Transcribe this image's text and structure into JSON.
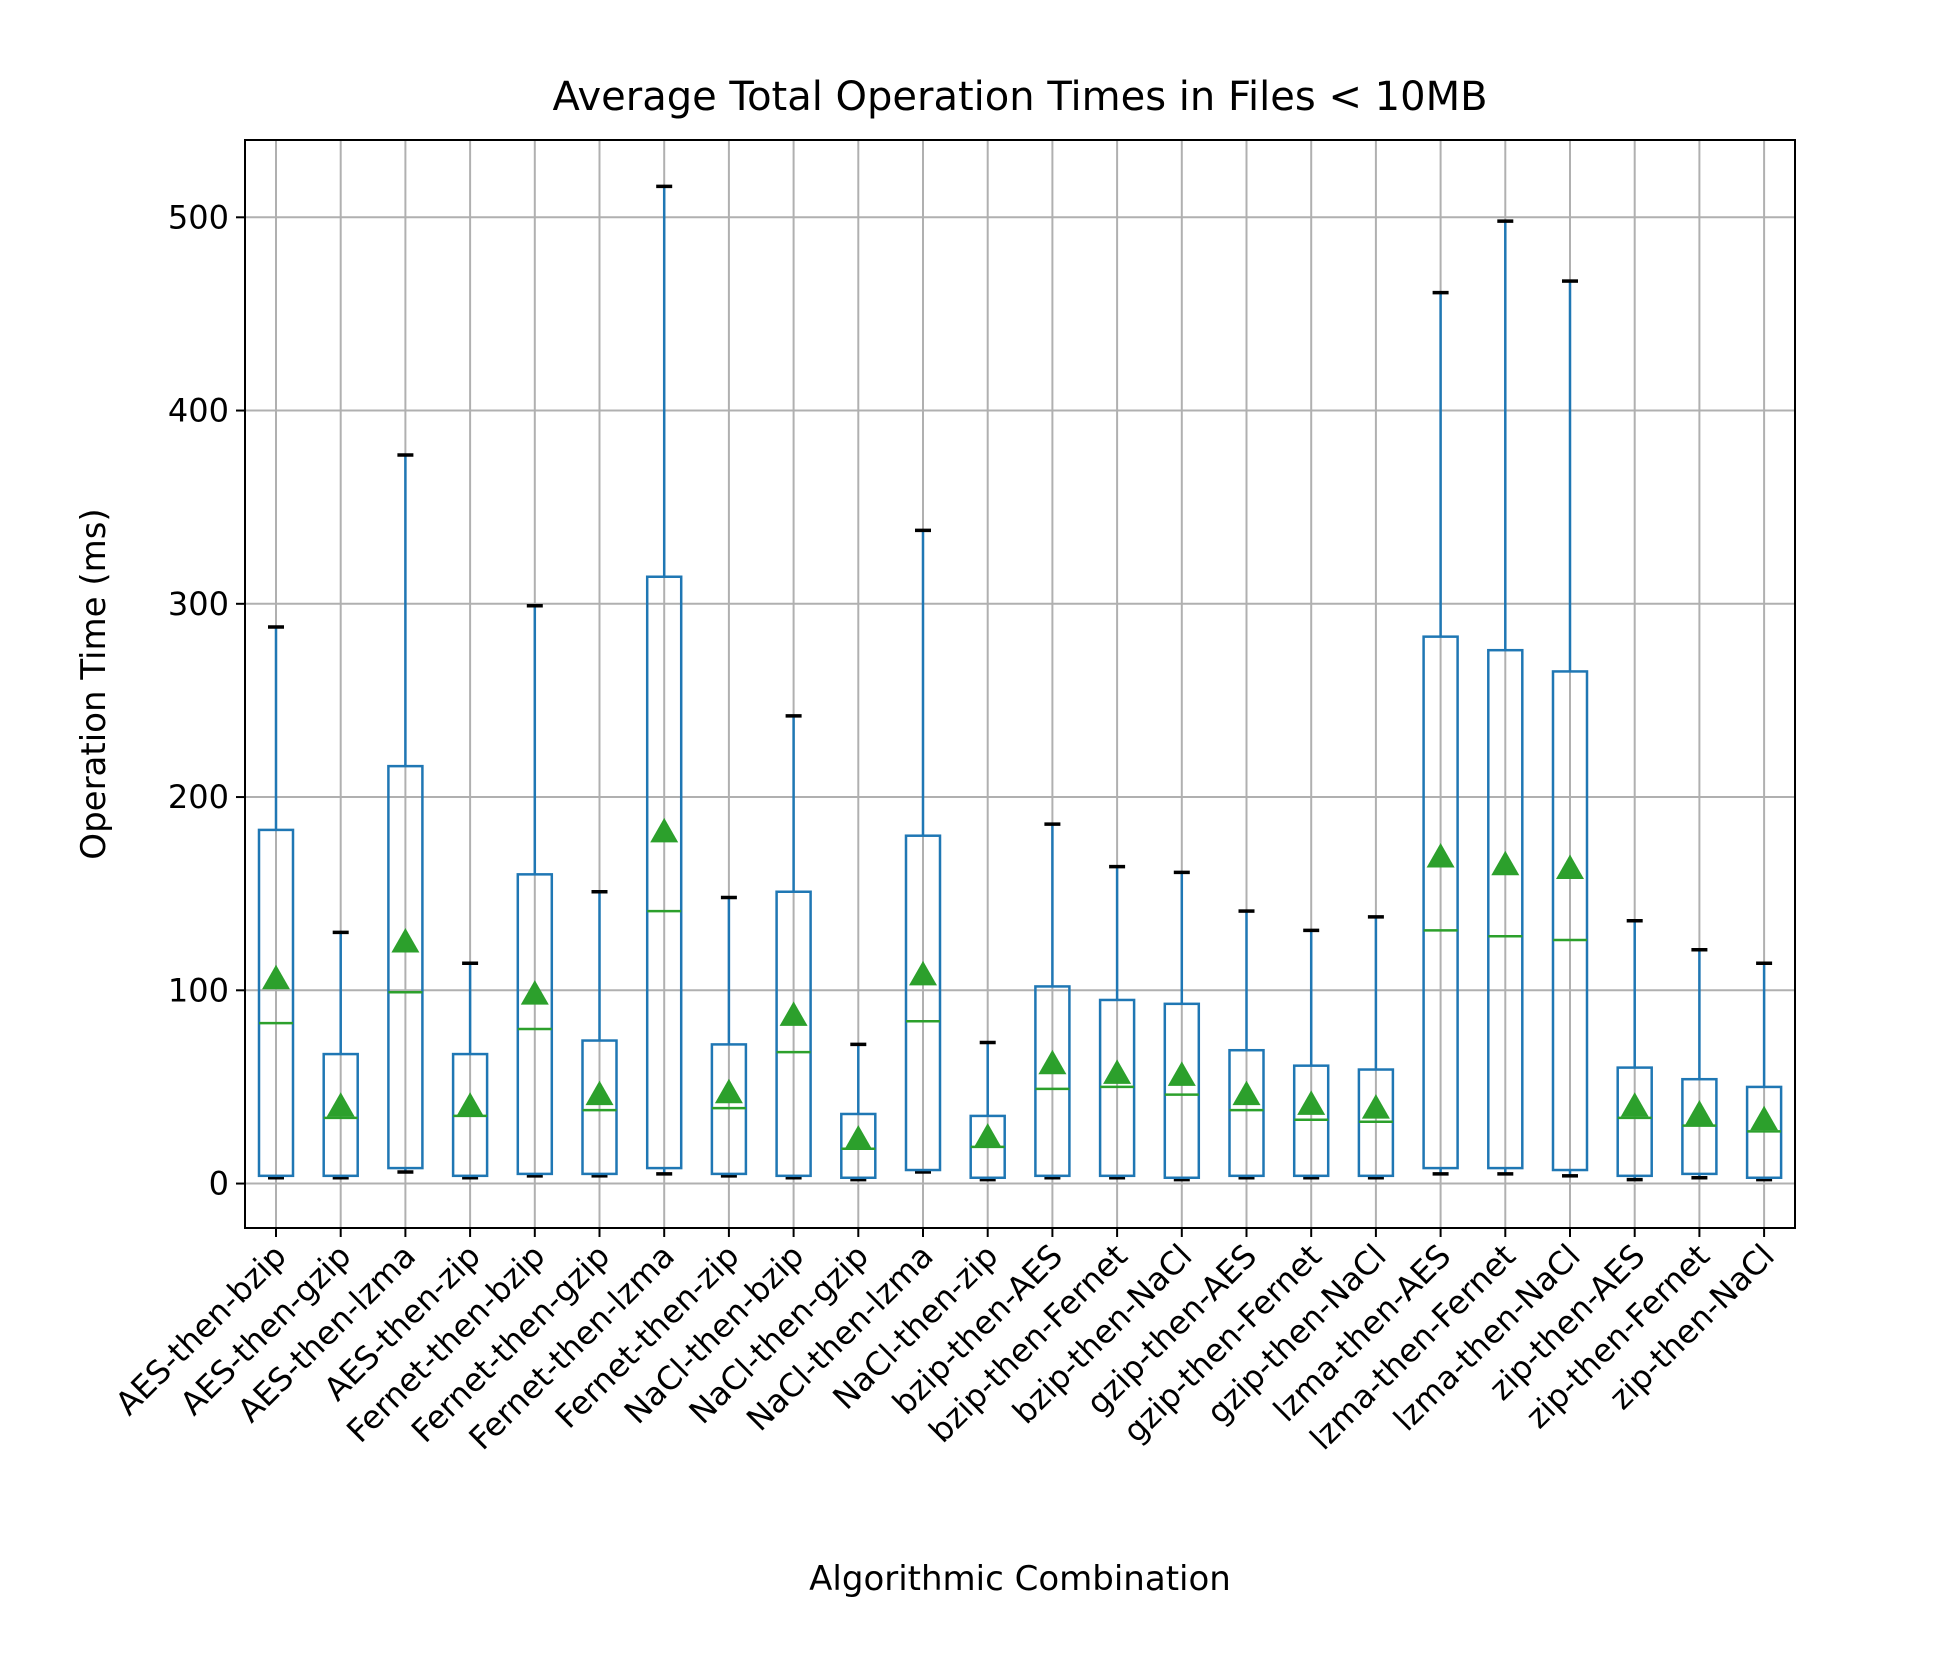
{
  "chart_data": {
    "type": "box",
    "title": "Average Total Operation Times in Files < 10MB",
    "xlabel": "Algorithmic Combination",
    "ylabel": "Operation Time (ms)",
    "ylim": [
      -23,
      540
    ],
    "yticks": [
      0,
      100,
      200,
      300,
      400,
      500
    ],
    "grid": true,
    "colors": {
      "box": "#1f77b4",
      "median": "#2ca02c",
      "mean": "#2ca02c",
      "whisker_cap": "#000000",
      "grid": "#b0b0b0"
    },
    "categories": [
      "AES-then-bzip",
      "AES-then-gzip",
      "AES-then-lzma",
      "AES-then-zip",
      "Fernet-then-bzip",
      "Fernet-then-gzip",
      "Fernet-then-lzma",
      "Fernet-then-zip",
      "NaCl-then-bzip",
      "NaCl-then-gzip",
      "NaCl-then-lzma",
      "NaCl-then-zip",
      "bzip-then-AES",
      "bzip-then-Fernet",
      "bzip-then-NaCl",
      "gzip-then-AES",
      "gzip-then-Fernet",
      "gzip-then-NaCl",
      "lzma-then-AES",
      "lzma-then-Fernet",
      "lzma-then-NaCl",
      "zip-then-AES",
      "zip-then-Fernet",
      "zip-then-NaCl"
    ],
    "boxes": [
      {
        "whisker_low": 3,
        "q1": 4,
        "median": 83,
        "q3": 183,
        "whisker_high": 288,
        "mean": 106
      },
      {
        "whisker_low": 3,
        "q1": 4,
        "median": 34,
        "q3": 67,
        "whisker_high": 130,
        "mean": 40
      },
      {
        "whisker_low": 6,
        "q1": 8,
        "median": 99,
        "q3": 216,
        "whisker_high": 377,
        "mean": 125
      },
      {
        "whisker_low": 3,
        "q1": 4,
        "median": 35,
        "q3": 67,
        "whisker_high": 114,
        "mean": 40
      },
      {
        "whisker_low": 4,
        "q1": 5,
        "median": 80,
        "q3": 160,
        "whisker_high": 299,
        "mean": 98
      },
      {
        "whisker_low": 4,
        "q1": 5,
        "median": 38,
        "q3": 74,
        "whisker_high": 151,
        "mean": 46
      },
      {
        "whisker_low": 5,
        "q1": 8,
        "median": 141,
        "q3": 314,
        "whisker_high": 516,
        "mean": 182
      },
      {
        "whisker_low": 4,
        "q1": 5,
        "median": 39,
        "q3": 72,
        "whisker_high": 148,
        "mean": 47
      },
      {
        "whisker_low": 3,
        "q1": 4,
        "median": 68,
        "q3": 151,
        "whisker_high": 242,
        "mean": 87
      },
      {
        "whisker_low": 2,
        "q1": 3,
        "median": 18,
        "q3": 36,
        "whisker_high": 72,
        "mean": 23
      },
      {
        "whisker_low": 6,
        "q1": 7,
        "median": 84,
        "q3": 180,
        "whisker_high": 338,
        "mean": 108
      },
      {
        "whisker_low": 2,
        "q1": 3,
        "median": 19,
        "q3": 35,
        "whisker_high": 73,
        "mean": 24
      },
      {
        "whisker_low": 3,
        "q1": 4,
        "median": 49,
        "q3": 102,
        "whisker_high": 186,
        "mean": 62
      },
      {
        "whisker_low": 3,
        "q1": 4,
        "median": 50,
        "q3": 95,
        "whisker_high": 164,
        "mean": 57
      },
      {
        "whisker_low": 2,
        "q1": 3,
        "median": 46,
        "q3": 93,
        "whisker_high": 161,
        "mean": 56
      },
      {
        "whisker_low": 3,
        "q1": 4,
        "median": 38,
        "q3": 69,
        "whisker_high": 141,
        "mean": 46
      },
      {
        "whisker_low": 3,
        "q1": 4,
        "median": 33,
        "q3": 61,
        "whisker_high": 131,
        "mean": 41
      },
      {
        "whisker_low": 3,
        "q1": 4,
        "median": 32,
        "q3": 59,
        "whisker_high": 138,
        "mean": 39
      },
      {
        "whisker_low": 5,
        "q1": 8,
        "median": 131,
        "q3": 283,
        "whisker_high": 461,
        "mean": 169
      },
      {
        "whisker_low": 5,
        "q1": 8,
        "median": 128,
        "q3": 276,
        "whisker_high": 498,
        "mean": 165
      },
      {
        "whisker_low": 4,
        "q1": 7,
        "median": 126,
        "q3": 265,
        "whisker_high": 467,
        "mean": 163
      },
      {
        "whisker_low": 2,
        "q1": 4,
        "median": 34,
        "q3": 60,
        "whisker_high": 136,
        "mean": 40
      },
      {
        "whisker_low": 3,
        "q1": 5,
        "median": 30,
        "q3": 54,
        "whisker_high": 121,
        "mean": 36
      },
      {
        "whisker_low": 2,
        "q1": 3,
        "median": 27,
        "q3": 50,
        "whisker_high": 114,
        "mean": 33
      }
    ]
  }
}
